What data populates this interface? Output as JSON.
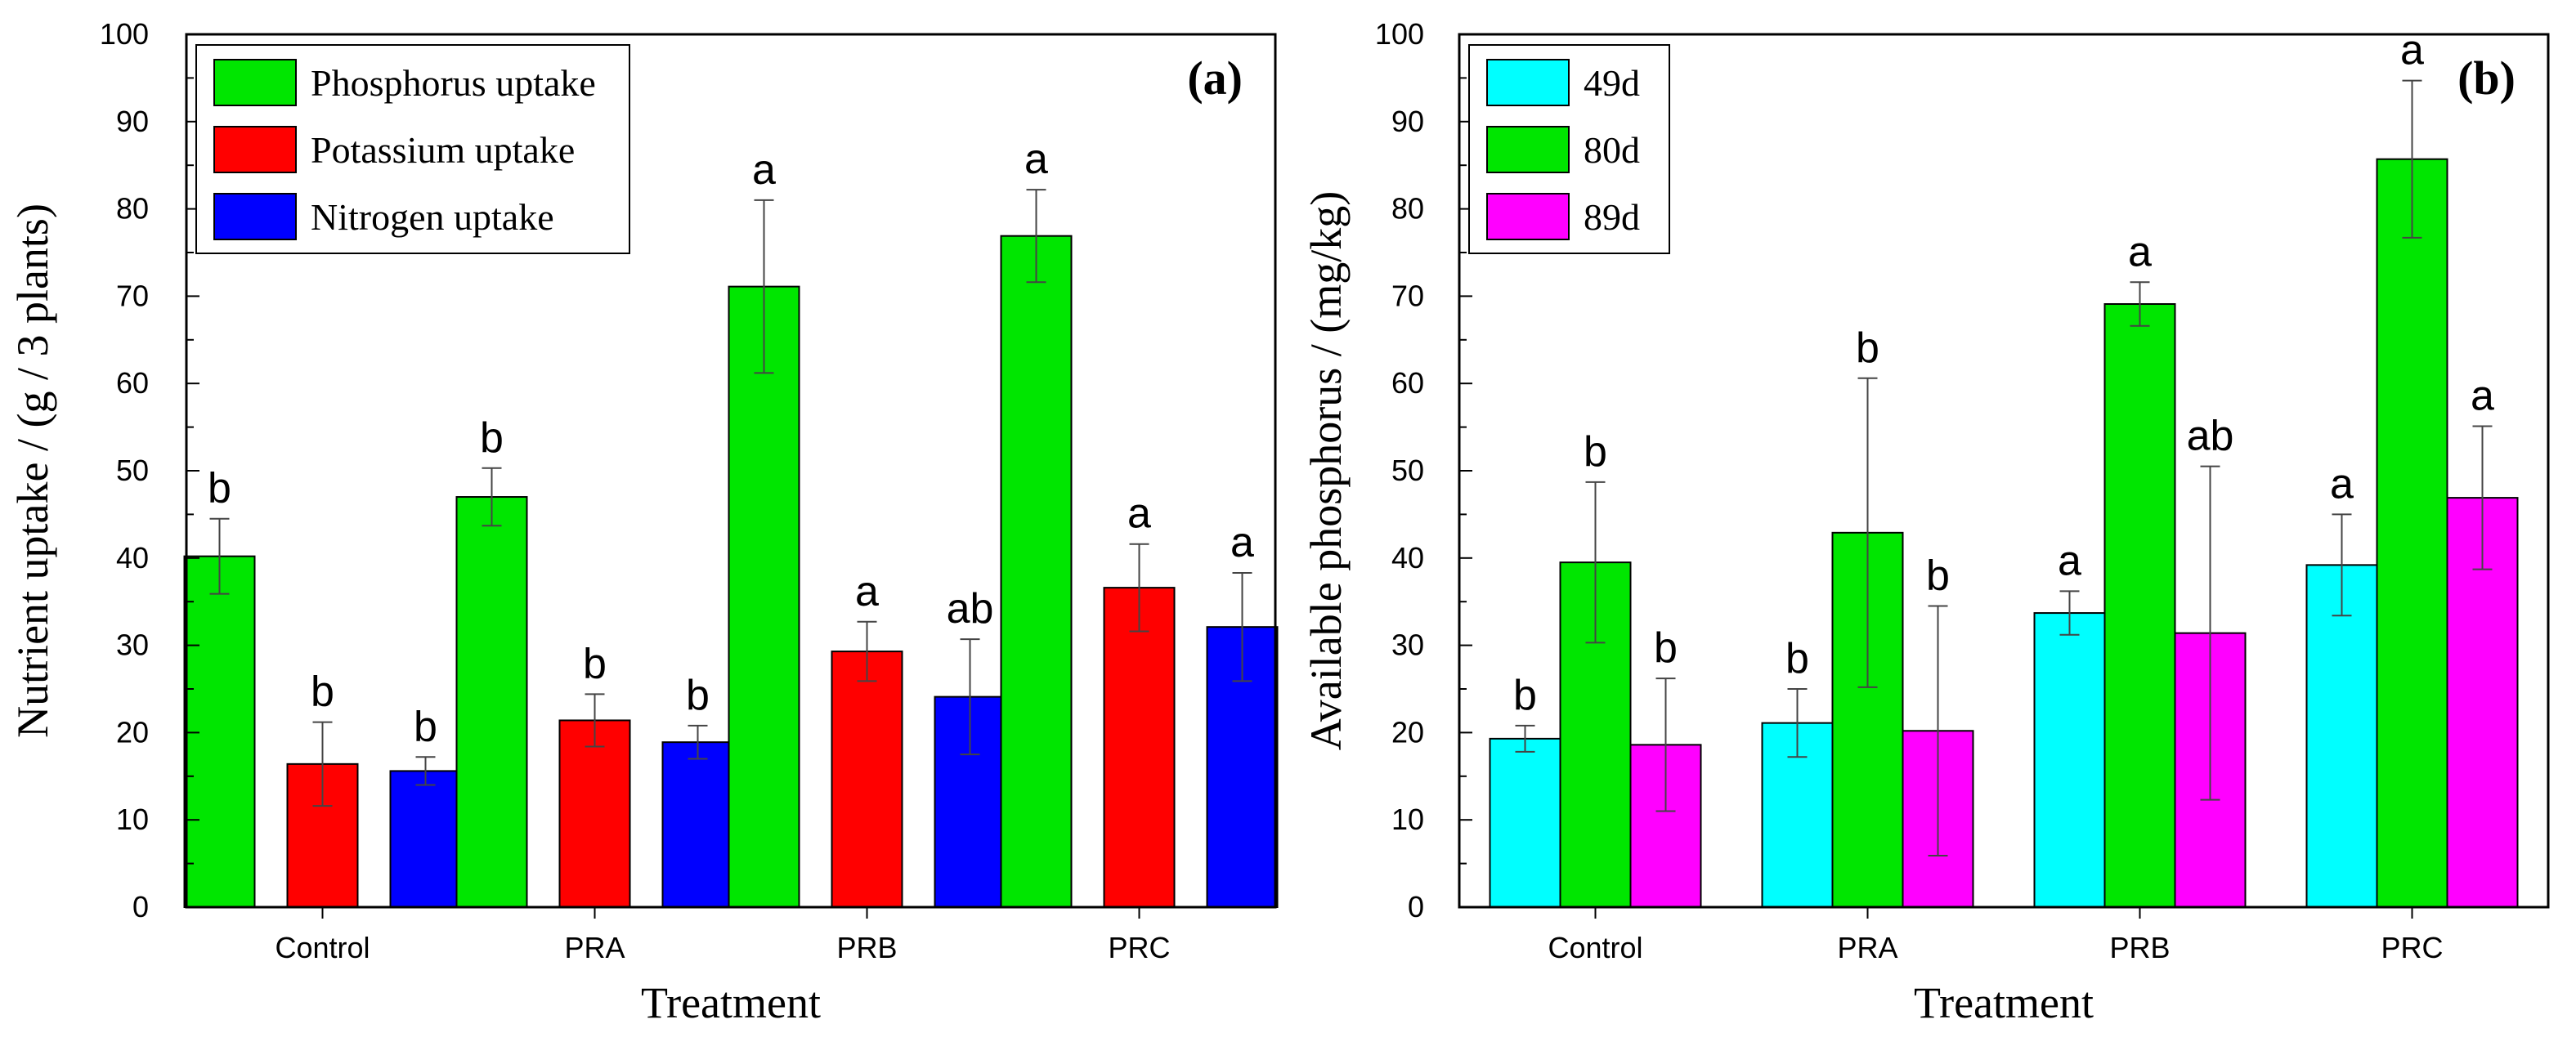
{
  "chart_data": [
    {
      "type": "bar",
      "panel_label": "(a)",
      "xlabel": "Treatment",
      "ylabel": "Nutrient uptake / (g / 3 plants)",
      "ylim": [
        0,
        100
      ],
      "yticks": [
        0,
        10,
        20,
        30,
        40,
        50,
        60,
        70,
        80,
        90,
        100
      ],
      "categories": [
        "Control",
        "PRA",
        "PRB",
        "PRC"
      ],
      "legend_position": "top-left",
      "series": [
        {
          "name": "Phosphorus uptake",
          "color": "#00e600",
          "values": [
            40.2,
            47.0,
            71.1,
            76.9
          ],
          "errors": [
            4.3,
            3.3,
            9.9,
            5.3
          ],
          "letters": [
            "b",
            "b",
            "a",
            "a"
          ]
        },
        {
          "name": "Potassium uptake",
          "color": "#ff0000",
          "values": [
            16.4,
            21.4,
            29.3,
            36.6
          ],
          "errors": [
            4.8,
            3.0,
            3.4,
            5.0
          ],
          "letters": [
            "b",
            "b",
            "a",
            "a"
          ]
        },
        {
          "name": "Nitrogen uptake",
          "color": "#0000ff",
          "values": [
            15.6,
            18.9,
            24.1,
            32.1
          ],
          "errors": [
            1.6,
            1.9,
            6.6,
            6.2
          ],
          "letters": [
            "b",
            "b",
            "ab",
            "a"
          ]
        }
      ]
    },
    {
      "type": "bar",
      "panel_label": "(b)",
      "xlabel": "Treatment",
      "ylabel": "Available phosphorus / (mg/kg)",
      "ylim": [
        0,
        100
      ],
      "yticks": [
        0,
        10,
        20,
        30,
        40,
        50,
        60,
        70,
        80,
        90,
        100
      ],
      "categories": [
        "Control",
        "PRA",
        "PRB",
        "PRC"
      ],
      "legend_position": "top-left",
      "series": [
        {
          "name": "49d",
          "color": "#00ffff",
          "values": [
            19.3,
            21.1,
            33.7,
            39.2
          ],
          "errors": [
            1.5,
            3.9,
            2.5,
            5.8
          ],
          "letters": [
            "b",
            "b",
            "a",
            "a"
          ]
        },
        {
          "name": "80d",
          "color": "#00e600",
          "values": [
            39.5,
            42.9,
            69.1,
            85.7
          ],
          "errors": [
            9.2,
            17.7,
            2.5,
            9.0
          ],
          "letters": [
            "b",
            "b",
            "a",
            "a"
          ]
        },
        {
          "name": "89d",
          "color": "#ff00ff",
          "values": [
            18.6,
            20.2,
            31.4,
            46.9
          ],
          "errors": [
            7.6,
            14.3,
            19.1,
            8.2
          ],
          "letters": [
            "b",
            "b",
            "ab",
            "a"
          ]
        }
      ]
    }
  ]
}
